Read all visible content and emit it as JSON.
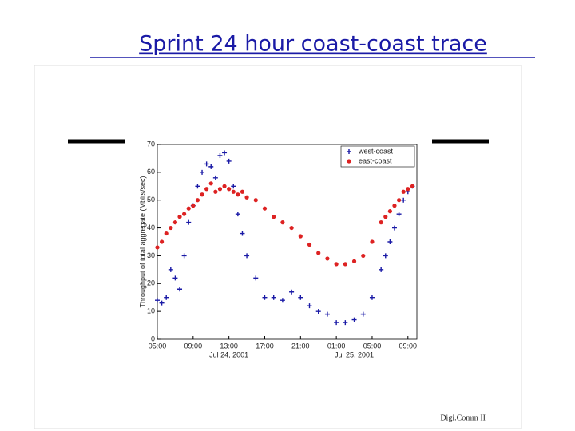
{
  "slide_title": "Sprint 24 hour coast-coast trace",
  "footer": "Digi.Comm II",
  "chart_data": {
    "type": "scatter",
    "y_label": "Throughput of total aggregate (Mbits/sec)",
    "x": [
      0,
      0.5,
      1,
      1.5,
      2,
      2.5,
      3,
      3.5,
      4,
      4.5,
      5,
      5.5,
      6,
      6.5,
      7,
      7.5,
      8,
      8.5,
      9,
      9.5,
      10,
      11,
      12,
      13,
      14,
      15,
      16,
      17,
      18,
      19,
      20,
      21,
      22,
      23,
      24,
      25,
      25.5,
      26,
      26.5,
      27,
      27.5,
      28,
      28.5
    ],
    "series": [
      {
        "name": "west-coast",
        "color": "#1a1aa6",
        "values": [
          14,
          13,
          15,
          25,
          22,
          18,
          30,
          42,
          48,
          55,
          60,
          63,
          62,
          58,
          66,
          67,
          64,
          55,
          45,
          38,
          30,
          22,
          15,
          15,
          14,
          17,
          15,
          12,
          10,
          9,
          6,
          6,
          7,
          9,
          15,
          25,
          30,
          35,
          40,
          45,
          50,
          53,
          55
        ]
      },
      {
        "name": "east-coast",
        "color": "#dd2222",
        "values": [
          33,
          35,
          38,
          40,
          42,
          44,
          45,
          47,
          48,
          50,
          52,
          54,
          56,
          53,
          54,
          55,
          54,
          53,
          52,
          53,
          51,
          50,
          47,
          44,
          42,
          40,
          37,
          34,
          31,
          29,
          27,
          27,
          28,
          30,
          35,
          42,
          44,
          46,
          48,
          50,
          53,
          54,
          55
        ]
      }
    ],
    "xlim": [
      0,
      29
    ],
    "xticks": [
      {
        "value": 0,
        "label": "05:00"
      },
      {
        "value": 4,
        "label": "09:00"
      },
      {
        "value": 8,
        "label": "13:00"
      },
      {
        "value": 12,
        "label": "17:00"
      },
      {
        "value": 16,
        "label": "21:00"
      },
      {
        "value": 20,
        "label": "01:00"
      },
      {
        "value": 24,
        "label": "05:00"
      },
      {
        "value": 28,
        "label": "09:00"
      }
    ],
    "x_date_labels": [
      {
        "value": 8,
        "label": "Jul 24, 2001"
      },
      {
        "value": 22,
        "label": "Jul 25, 2001"
      }
    ],
    "ylim": [
      0,
      70
    ],
    "yticks": [
      0,
      10,
      20,
      30,
      40,
      50,
      60,
      70
    ],
    "legend": "upper right"
  }
}
